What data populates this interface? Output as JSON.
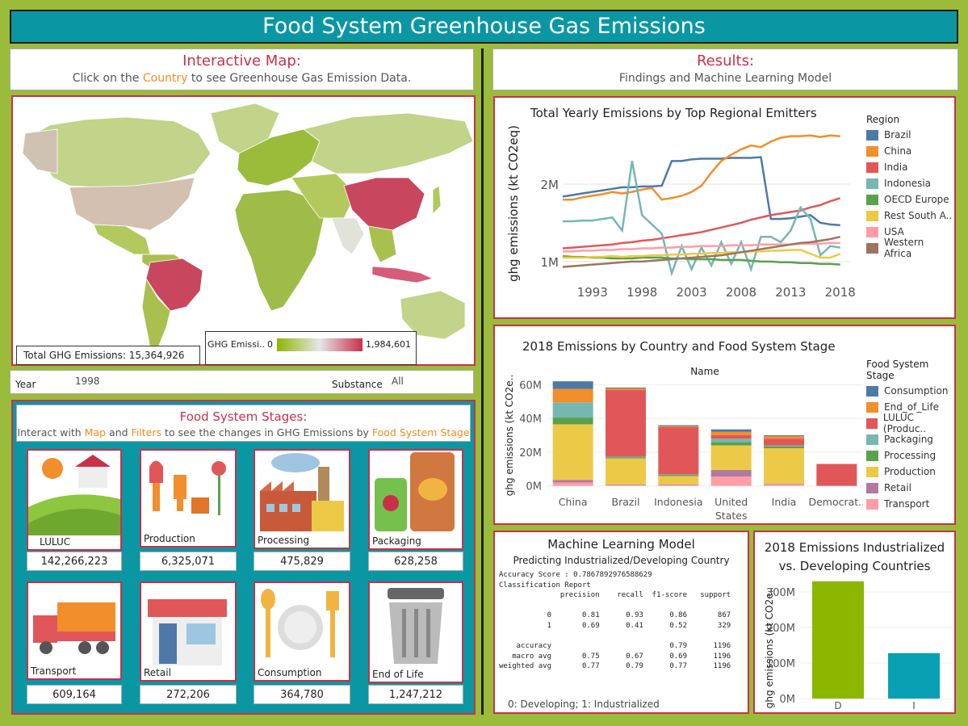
{
  "title": "Food System Greenhouse Gas Emissions",
  "map_panel": {
    "heading": "Interactive Map:",
    "sub_pre": "Click on the ",
    "sub_hl": "Country",
    "sub_post": " to see Greenhouse Gas Emission Data.",
    "total_label": "Total GHG Emissions: 15,364,926",
    "legend_label": "GHG Emissi..",
    "legend_min": "0",
    "legend_max": "1,984,601"
  },
  "filters": {
    "year_label": "Year",
    "year_value": "1998",
    "substance_label": "Substance",
    "substance_value": "All"
  },
  "stages_panel": {
    "heading": "Food System Stages:",
    "sub_a": "Interact with ",
    "sub_b": "Map",
    "sub_c": " and ",
    "sub_d": "Filters",
    "sub_e": " to see the changes in GHG Emissions by ",
    "sub_f": "Food System Stage",
    "stages": [
      {
        "label": "LULUC",
        "value": "142,266,223",
        "icon": "farm-icon"
      },
      {
        "label": "Production",
        "value": "6,325,071",
        "icon": "garden-tools-icon"
      },
      {
        "label": "Processing",
        "value": "475,829",
        "icon": "factory-icon"
      },
      {
        "label": "Packaging",
        "value": "628,258",
        "icon": "snack-package-icon"
      },
      {
        "label": "Transport",
        "value": "609,164",
        "icon": "truck-icon"
      },
      {
        "label": "Retail",
        "value": "272,206",
        "icon": "store-icon"
      },
      {
        "label": "Consumption",
        "value": "364,780",
        "icon": "plate-cutlery-icon"
      },
      {
        "label": "End of Life",
        "value": "1,247,212",
        "icon": "trash-can-icon"
      }
    ]
  },
  "results": {
    "heading": "Results:",
    "sub": "Findings and Machine Learning Model"
  },
  "colors": {
    "Brazil": "#4e79a7",
    "China": "#f28e2b",
    "India": "#e15759",
    "Indonesia": "#76b7b2",
    "OECD Europe": "#59a14f",
    "Rest South A..": "#edc948",
    "USA": "#ff9da7",
    "Western Africa": "#9c755f",
    "Consumption": "#4e79a7",
    "End_of_Life": "#f28e2b",
    "LULUC": "#e15759",
    "Packaging": "#76b7b2",
    "Processing": "#59a14f",
    "Production": "#edc948",
    "Retail": "#b07aa1",
    "Transport": "#ff9da7",
    "dev": "#8db600",
    "ind": "#0aa0b4"
  },
  "chart_data": [
    {
      "type": "line",
      "title": "Total Yearly Emissions by Top Regional Emitters",
      "ylabel": "ghg emissions (kt CO2eq)",
      "legend_title": "Region",
      "x_ticks": [
        "1993",
        "1998",
        "2003",
        "2008",
        "2013",
        "2018"
      ],
      "y_ticks": [
        "1M",
        "2M"
      ],
      "xlim": [
        1990,
        2019
      ],
      "ylim": [
        0.8,
        2.7
      ],
      "x": [
        1990,
        1991,
        1992,
        1993,
        1994,
        1995,
        1996,
        1997,
        1998,
        1999,
        2000,
        2001,
        2002,
        2003,
        2004,
        2005,
        2006,
        2007,
        2008,
        2009,
        2010,
        2011,
        2012,
        2013,
        2014,
        2015,
        2016,
        2017,
        2018
      ],
      "series": [
        {
          "name": "Brazil",
          "values": [
            1.84,
            1.86,
            1.88,
            1.9,
            1.92,
            1.94,
            1.96,
            1.96,
            1.97,
            1.97,
            1.98,
            2.3,
            2.3,
            2.32,
            2.33,
            2.33,
            2.33,
            2.34,
            2.34,
            2.34,
            2.35,
            1.55,
            1.55,
            1.56,
            1.58,
            1.6,
            1.5,
            1.48,
            1.47
          ]
        },
        {
          "name": "China",
          "values": [
            1.8,
            1.8,
            1.83,
            1.85,
            1.87,
            1.9,
            1.88,
            1.9,
            1.93,
            1.95,
            1.8,
            1.82,
            1.85,
            1.9,
            1.98,
            2.15,
            2.3,
            2.38,
            2.45,
            2.5,
            2.48,
            2.55,
            2.6,
            2.62,
            2.62,
            2.63,
            2.61,
            2.63,
            2.62
          ]
        },
        {
          "name": "India",
          "values": [
            1.17,
            1.18,
            1.19,
            1.2,
            1.21,
            1.22,
            1.24,
            1.25,
            1.27,
            1.28,
            1.3,
            1.32,
            1.34,
            1.36,
            1.38,
            1.41,
            1.44,
            1.47,
            1.5,
            1.54,
            1.57,
            1.6,
            1.62,
            1.64,
            1.66,
            1.7,
            1.73,
            1.78,
            1.82
          ]
        },
        {
          "name": "Indonesia",
          "values": [
            1.52,
            1.52,
            1.53,
            1.53,
            1.55,
            1.57,
            1.4,
            2.3,
            1.6,
            1.48,
            1.36,
            0.85,
            1.2,
            0.9,
            1.18,
            0.95,
            1.25,
            0.97,
            1.25,
            0.9,
            1.32,
            1.32,
            1.25,
            1.4,
            1.7,
            1.55,
            1.08,
            1.2,
            1.18
          ]
        },
        {
          "name": "OECD Europe",
          "values": [
            1.07,
            1.06,
            1.06,
            1.05,
            1.05,
            1.04,
            1.04,
            1.04,
            1.05,
            1.05,
            1.05,
            1.04,
            1.04,
            1.03,
            1.03,
            1.03,
            1.02,
            1.02,
            1.02,
            1.01,
            1.0,
            1.0,
            0.99,
            0.99,
            0.98,
            0.98,
            0.97,
            0.97,
            0.96
          ]
        },
        {
          "name": "Rest South A..",
          "values": [
            1.05,
            1.05,
            1.05,
            1.06,
            1.06,
            1.07,
            1.06,
            1.07,
            1.07,
            1.08,
            1.08,
            1.09,
            1.09,
            1.1,
            1.1,
            1.11,
            1.11,
            1.12,
            1.12,
            1.13,
            1.13,
            1.14,
            1.14,
            1.15,
            1.15,
            1.1,
            1.05,
            1.05,
            1.1
          ]
        },
        {
          "name": "USA",
          "values": [
            1.13,
            1.13,
            1.14,
            1.14,
            1.15,
            1.15,
            1.16,
            1.16,
            1.17,
            1.17,
            1.18,
            1.18,
            1.19,
            1.19,
            1.2,
            1.2,
            1.2,
            1.21,
            1.21,
            1.21,
            1.22,
            1.22,
            1.22,
            1.22,
            1.23,
            1.23,
            1.23,
            1.24,
            1.24
          ]
        },
        {
          "name": "Western Africa",
          "values": [
            0.93,
            0.94,
            0.95,
            0.96,
            0.97,
            0.98,
            0.99,
            1.0,
            1.0,
            1.01,
            1.02,
            1.03,
            1.04,
            1.05,
            1.06,
            1.07,
            1.08,
            1.1,
            1.12,
            1.14,
            1.16,
            1.18,
            1.2,
            1.22,
            1.24,
            1.25,
            1.27,
            1.29,
            1.32
          ]
        }
      ]
    },
    {
      "type": "bar",
      "stacked": true,
      "title": "2018 Emissions by Country and Food System Stage",
      "xlabel": "Name",
      "ylabel": "ghg emissions (kt CO2e..",
      "legend_title": "Food System Stage",
      "legend": [
        "Consumption",
        "End_of_Life",
        "LULUC (Produc..",
        "Packaging",
        "Processing",
        "Production",
        "Retail",
        "Transport"
      ],
      "stack_keys": [
        "Transport",
        "Retail",
        "Production",
        "Processing",
        "Packaging",
        "LULUC",
        "End_of_Life",
        "Consumption"
      ],
      "categories": [
        "China",
        "Brazil",
        "Indonesia",
        "United States",
        "India",
        "Democrat.."
      ],
      "y_ticks": [
        "0M",
        "20M",
        "40M",
        "60M"
      ],
      "ylim": [
        -4,
        64
      ],
      "series": [
        {
          "name": "Transport",
          "values": [
            2.0,
            0.5,
            0.5,
            5.5,
            1.0,
            0
          ]
        },
        {
          "name": "Retail",
          "values": [
            1.5,
            0.3,
            0.3,
            4.0,
            0.3,
            0
          ]
        },
        {
          "name": "Production",
          "values": [
            33.0,
            15.5,
            5.0,
            14.5,
            21.0,
            0
          ]
        },
        {
          "name": "Processing",
          "values": [
            4.0,
            0.5,
            0.5,
            2.0,
            1.0,
            0
          ]
        },
        {
          "name": "Packaging",
          "values": [
            9.0,
            0.5,
            0.5,
            2.0,
            0.7,
            0
          ]
        },
        {
          "name": "LULUC",
          "values": [
            0,
            39.5,
            28.0,
            2.0,
            4.0,
            13.0
          ]
        },
        {
          "name": "End_of_Life",
          "values": [
            8.0,
            1.0,
            0.7,
            2.0,
            1.5,
            0
          ]
        },
        {
          "name": "Consumption",
          "values": [
            4.5,
            0.5,
            0.5,
            1.5,
            0.5,
            0
          ]
        }
      ]
    },
    {
      "type": "bar",
      "title": "2018 Emissions Industrialized vs. Developing Countries",
      "ylabel": "ghg emissions (kt CO2e..",
      "categories": [
        "D",
        "I"
      ],
      "values": [
        330,
        128
      ],
      "y_ticks": [
        "0M",
        "100M",
        "200M",
        "300M"
      ],
      "ylim": [
        -18,
        350
      ]
    }
  ],
  "ml_panel": {
    "title": "Machine Learning Model",
    "subtitle": "Predicting Industrialized/Developing Country",
    "lines": [
      "Accuracy Score : 0.7867892976588629",
      "Classification Report",
      "              precision    recall  f1-score   support",
      "",
      "           0       0.81      0.93      0.86       867",
      "           1       0.69      0.41      0.52       329",
      "",
      "    accuracy                           0.79      1196",
      "   macro avg       0.75      0.67      0.69      1196",
      "weighted avg       0.77      0.79      0.77      1196"
    ],
    "footnote": "0: Developing; 1: Industrialized"
  },
  "ind_dev_title_1": "2018 Emissions Industrialized",
  "ind_dev_title_2": "vs. Developing Countries"
}
